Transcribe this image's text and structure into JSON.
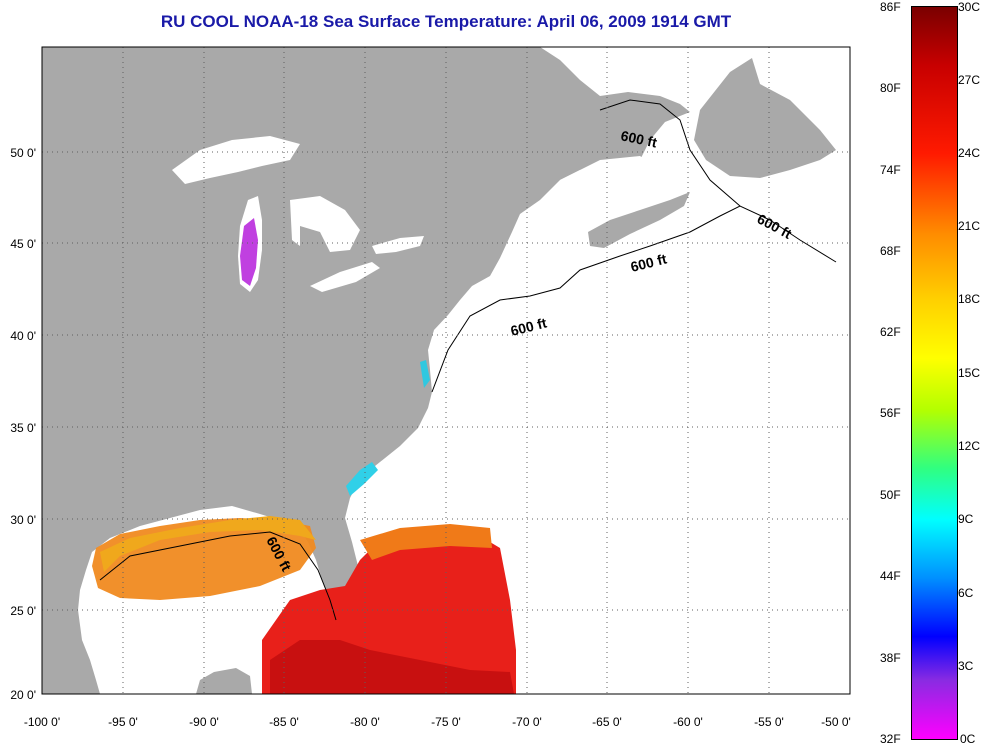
{
  "title": "RU COOL  NOAA-18  Sea Surface Temperature:  April 06, 2009 1914 GMT",
  "lon_ticks": [
    "-100 0'",
    "-95 0'",
    "-90 0'",
    "-85 0'",
    "-80 0'",
    "-75 0'",
    "-70 0'",
    "-65 0'",
    "-60 0'",
    "-55 0'",
    "-50 0'"
  ],
  "lat_ticks": [
    "20 0'",
    "25 0'",
    "30 0'",
    "35 0'",
    "40 0'",
    "45 0'",
    "50 0'"
  ],
  "isobath_label": "600 ft",
  "colorbar": {
    "fahrenheit": [
      "86F",
      "80F",
      "74F",
      "68F",
      "62F",
      "56F",
      "50F",
      "44F",
      "38F",
      "32F"
    ],
    "celsius": [
      "30C",
      "27C",
      "24C",
      "21C",
      "18C",
      "15C",
      "12C",
      "9C",
      "6C",
      "3C",
      "0C"
    ]
  },
  "colors": {
    "land": "#a9a9a9",
    "water": "#ffffff",
    "title": "#1a1aa8",
    "warm": "#e8201a",
    "hot": "#c81010",
    "orange": "#f07a18",
    "amber": "#f0a01c",
    "violet": "#c040e0",
    "cyan": "#30d0e8"
  }
}
